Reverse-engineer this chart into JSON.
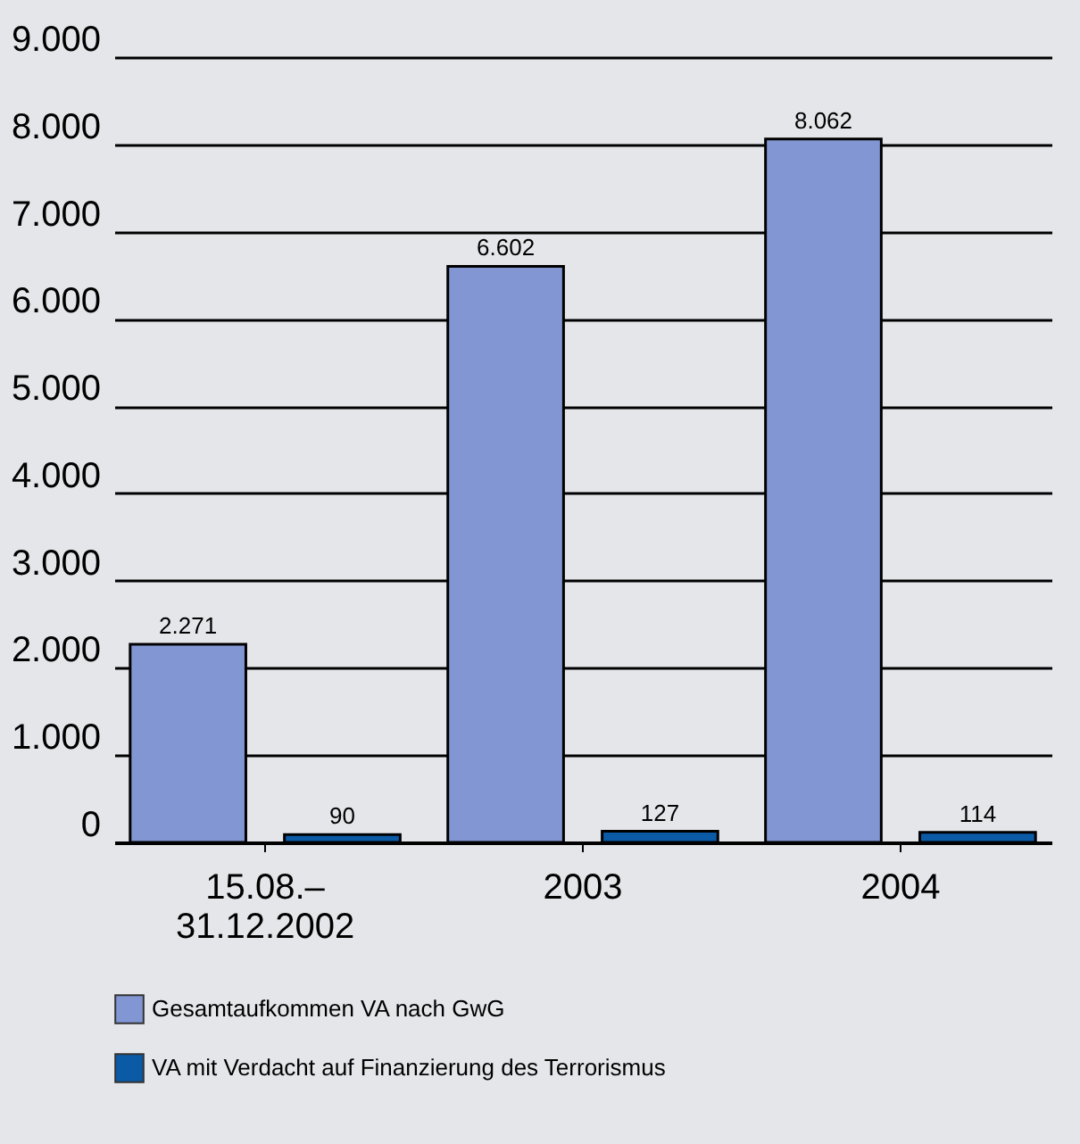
{
  "chart_data": {
    "type": "bar",
    "categories": [
      "15.08.–\n31.12.2002",
      "2003",
      "2004"
    ],
    "series": [
      {
        "name": "Gesamtaufkommen VA nach GwG",
        "color": "#8196d2",
        "values": [
          2271,
          6602,
          8062
        ],
        "value_labels": [
          "2.271",
          "6.602",
          "8.062"
        ]
      },
      {
        "name": "VA mit Verdacht auf Finanzierung des Terrorismus",
        "color": "#0b5aa6",
        "values": [
          90,
          127,
          114
        ],
        "value_labels": [
          "90",
          "127",
          "114"
        ]
      }
    ],
    "ylim": [
      0,
      9000
    ],
    "yticks": [
      0,
      {
        "value": 1000,
        "label": "1.000"
      },
      {
        "value": 2000,
        "label": "2.000"
      },
      {
        "value": 3000,
        "label": "3.000"
      },
      {
        "value": 4000,
        "label": "4.000"
      },
      {
        "value": 5000,
        "label": "5.000"
      },
      {
        "value": 6000,
        "label": "6.000"
      },
      {
        "value": 7000,
        "label": "7.000"
      },
      {
        "value": 8000,
        "label": "8.000"
      },
      {
        "value": 9000,
        "label": "9.000"
      }
    ],
    "grid": "y",
    "legend": "bottom"
  }
}
